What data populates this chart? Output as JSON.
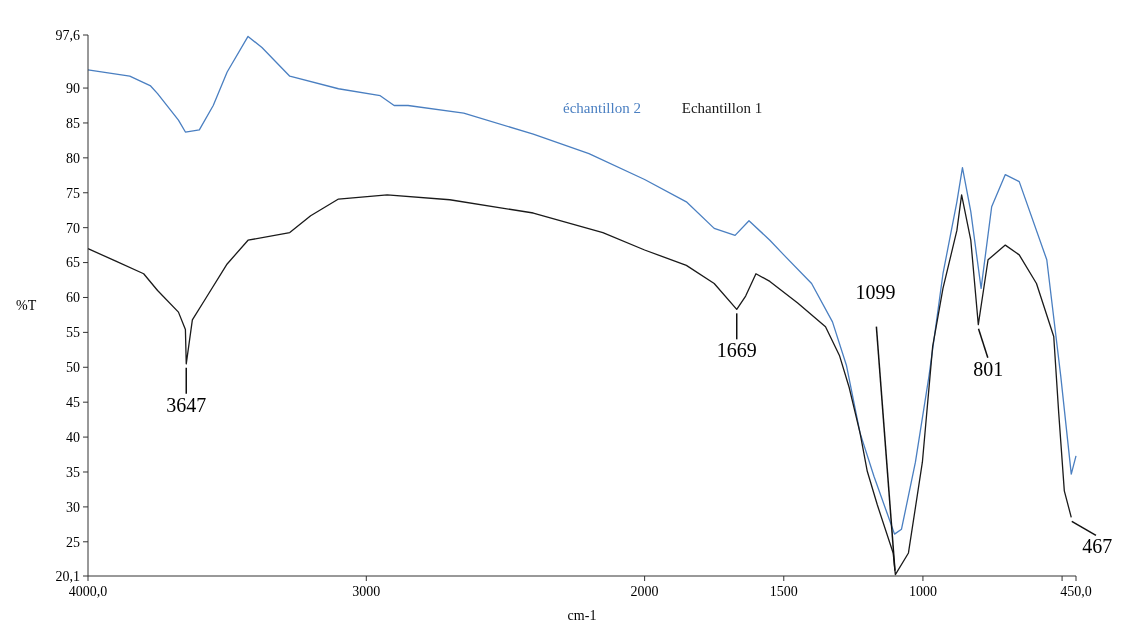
{
  "chart_data": {
    "type": "line",
    "xlabel": "cm-1",
    "ylabel": "%T",
    "xlim": [
      4000,
      450
    ],
    "ylim": [
      20.1,
      97.6
    ],
    "xticks": [
      {
        "value": 4000,
        "label": "4000,0"
      },
      3000,
      2000,
      1500,
      1000,
      {
        "value": 500,
        "label": null
      },
      {
        "value": 450,
        "label": "450,0"
      }
    ],
    "yticks": [
      {
        "value": 20.1,
        "label": "20,1"
      },
      25,
      30,
      35,
      40,
      45,
      50,
      55,
      60,
      65,
      70,
      75,
      80,
      85,
      90,
      {
        "value": 97.6,
        "label": "97,6"
      }
    ],
    "grid": false,
    "legend": "top",
    "marker": "none",
    "line_style": "solid",
    "series": [
      {
        "name": "échantillon 2",
        "color": "#4a7fc1",
        "x": [
          4000,
          3850,
          3775,
          3750,
          3675,
          3650,
          3600,
          3550,
          3500,
          3425,
          3375,
          3275,
          3100,
          2950,
          2900,
          2850,
          2650,
          2400,
          2200,
          2000,
          1850,
          1750,
          1675,
          1625,
          1550,
          1500,
          1400,
          1325,
          1275,
          1226,
          1176,
          1127,
          1102,
          1077,
          1027,
          978,
          928,
          878,
          858,
          828,
          791,
          753,
          704,
          654,
          555,
          505,
          467,
          450
        ],
        "values": [
          92.6,
          91.7,
          90.3,
          89.2,
          85.4,
          83.7,
          84,
          87.5,
          92.3,
          97.4,
          95.8,
          91.7,
          89.9,
          88.9,
          87.5,
          87.5,
          86.4,
          83.4,
          80.6,
          76.9,
          73.7,
          69.9,
          68.9,
          71,
          68.2,
          66.1,
          62,
          56.5,
          50.3,
          40.6,
          34.4,
          28.9,
          26.1,
          26.8,
          36.4,
          48.8,
          63.4,
          73.7,
          78.6,
          72.3,
          61.3,
          73,
          77.6,
          76.6,
          65.4,
          48.8,
          34.7,
          37.3
        ]
      },
      {
        "name": "Echantillon 1",
        "color": "#1a1a1a",
        "x": [
          4000,
          3900,
          3800,
          3750,
          3675,
          3650,
          3647,
          3625,
          3575,
          3500,
          3425,
          3275,
          3200,
          3100,
          2925,
          2700,
          2400,
          2150,
          2000,
          1850,
          1750,
          1669,
          1637,
          1600,
          1550,
          1450,
          1350,
          1300,
          1265,
          1226,
          1200,
          1164,
          1107,
          1099,
          1052,
          1002,
          965,
          928,
          878,
          861,
          828,
          801,
          766,
          704,
          654,
          592,
          530,
          512,
          492,
          467
        ],
        "values": [
          67,
          65.2,
          63.4,
          61,
          57.9,
          55.4,
          50.5,
          56.8,
          60,
          64.8,
          68.2,
          69.3,
          71.7,
          74.1,
          74.7,
          74,
          72.1,
          69.3,
          66.8,
          64.6,
          62,
          58.3,
          60.2,
          63.4,
          62.3,
          59.2,
          55.8,
          51.7,
          47.1,
          40.6,
          35.1,
          30.3,
          23.4,
          20.3,
          23.4,
          36.4,
          53,
          61.3,
          69.6,
          74.7,
          68.2,
          56.1,
          65.4,
          67.5,
          66.1,
          62,
          54.4,
          43.4,
          32.3,
          28.5
        ]
      }
    ],
    "annotations": [
      {
        "text": "3647",
        "x": 3647,
        "y": 50.5
      },
      {
        "text": "1669",
        "x": 1669,
        "y": 58.3
      },
      {
        "text": "1099",
        "x": 1099,
        "y": 20.3
      },
      {
        "text": "801",
        "x": 801,
        "y": 56.1
      },
      {
        "text": "467",
        "x": 467,
        "y": 28.5
      }
    ]
  }
}
